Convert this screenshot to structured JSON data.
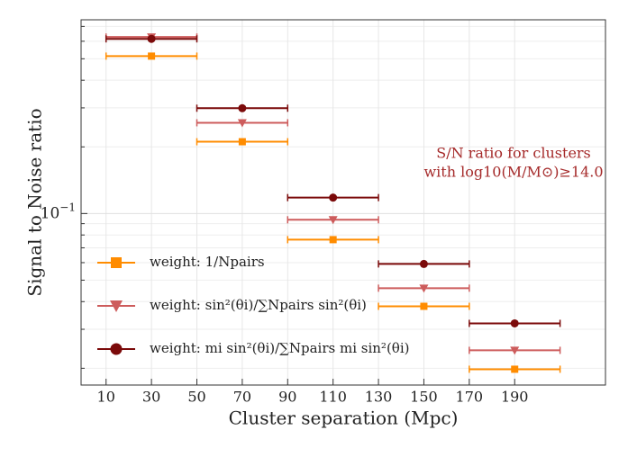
{
  "chart_data": {
    "type": "errorbar",
    "xlabel": "Cluster separation (Mpc)",
    "ylabel": "Signal to Noise ratio",
    "annotation": [
      "S/N ratio for clusters",
      "with log10(M/M⊙)≥14.0"
    ],
    "annotation_color": "#a52a2a",
    "x": [
      30,
      70,
      110,
      150,
      190
    ],
    "xerr": 20,
    "series": [
      {
        "name": "weight: 1/Npairs",
        "color": "#ff8c00",
        "marker": "square",
        "values": [
          0.514,
          0.211,
          0.0762,
          0.0381,
          0.0198
        ]
      },
      {
        "name": "weight: sin²(θi)/∑Npairs sin²(θi)",
        "color": "#cd5c5c",
        "marker": "triangle-down",
        "values": [
          0.627,
          0.257,
          0.0937,
          0.046,
          0.0241
        ]
      },
      {
        "name": "weight: mi sin²(θi)/∑Npairs mi sin²(θi)",
        "color": "#7b0a0a",
        "marker": "circle",
        "values": [
          0.615,
          0.299,
          0.118,
          0.0592,
          0.0319
        ]
      }
    ],
    "xlim": [
      -1,
      230
    ],
    "xticks": [
      10,
      30,
      50,
      70,
      90,
      110,
      130,
      150,
      170,
      190
    ],
    "ylim": [
      0.0168,
      0.75
    ],
    "yscale": "log",
    "yticks": [
      {
        "value": 0.1,
        "label": "10−1"
      }
    ],
    "minor_yticks": [
      0.02,
      0.03,
      0.04,
      0.05,
      0.06,
      0.07,
      0.08,
      0.09,
      0.2,
      0.3,
      0.4,
      0.5,
      0.6,
      0.7
    ],
    "grid": true,
    "legend": "lower left"
  }
}
